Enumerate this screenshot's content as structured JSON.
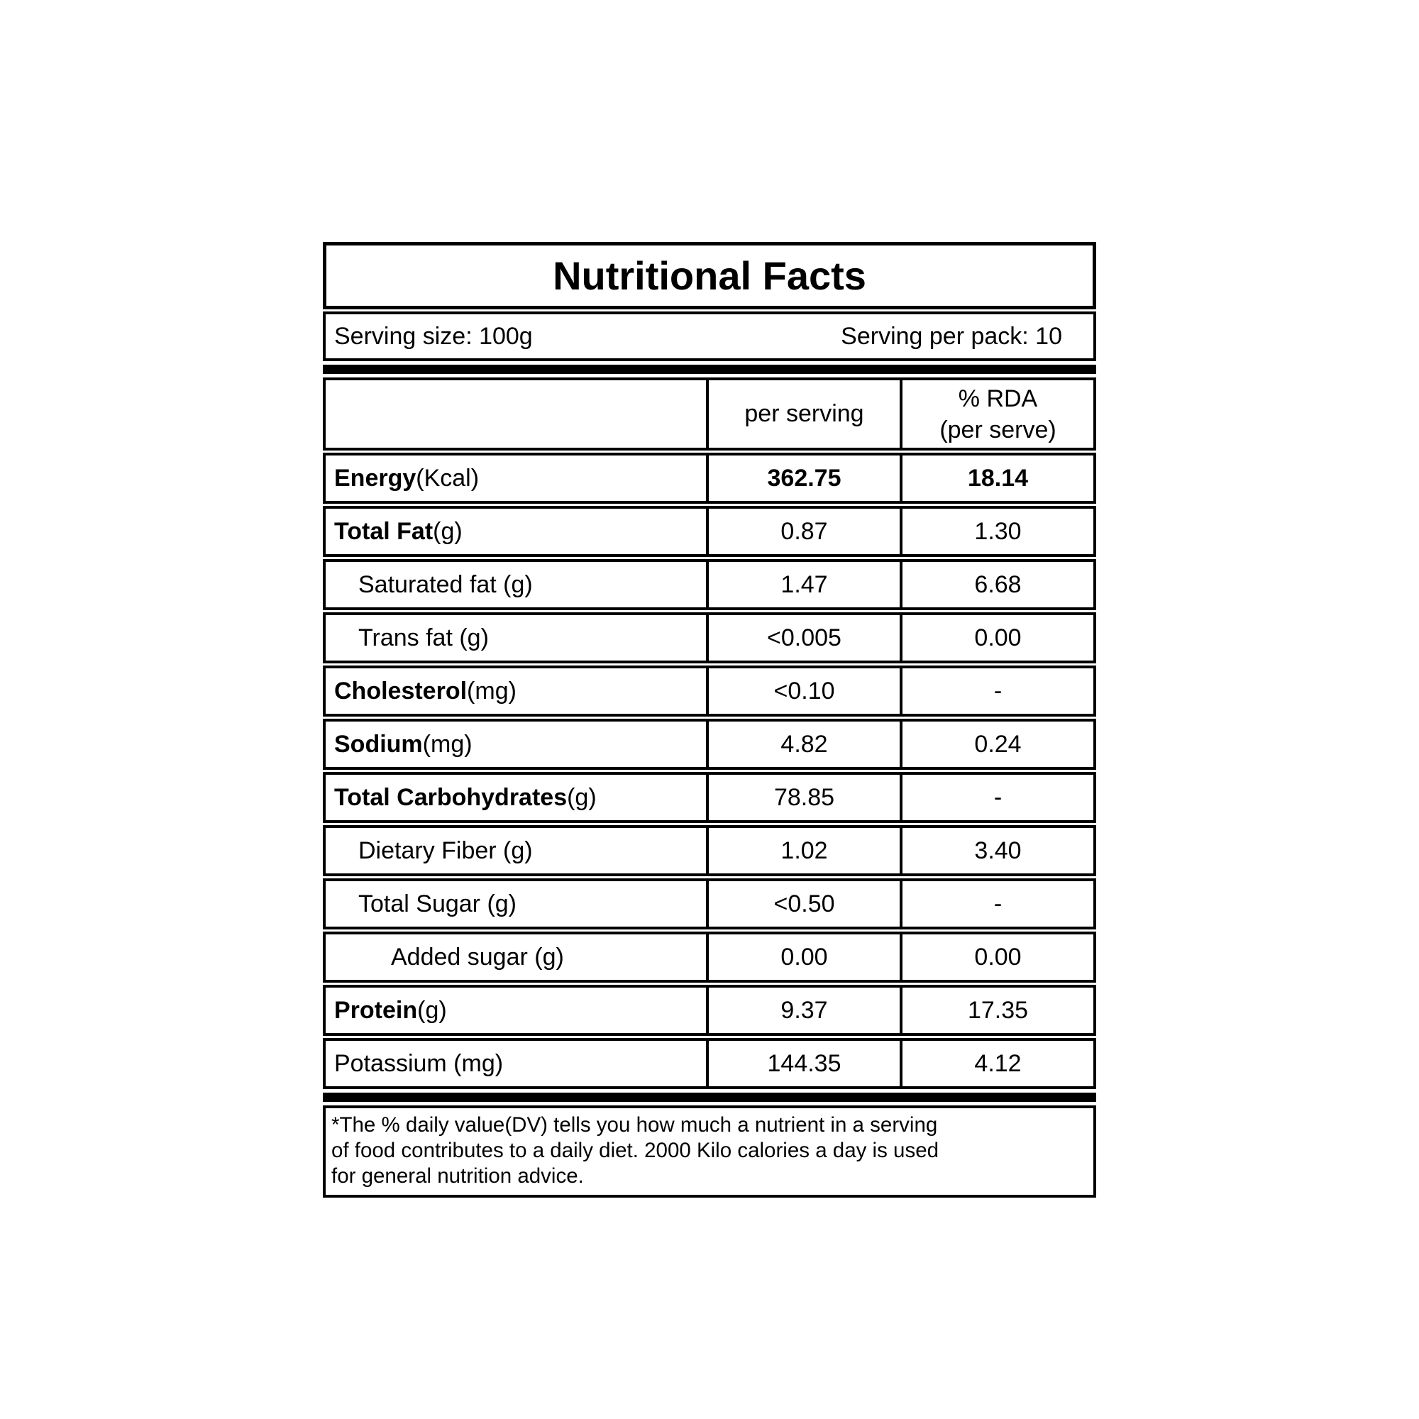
{
  "label": {
    "title": "Nutritional Facts",
    "serving_size": "Serving size: 100g",
    "serving_per_pack": "Serving per pack: 10",
    "columns": {
      "nutrient": "",
      "per_serving": "per serving",
      "rda_line1": "% RDA",
      "rda_line2": "(per serve)"
    },
    "rows": [
      {
        "name_bold": "Energy",
        "name_rest": " (Kcal)",
        "indent": 0,
        "per_serving": "362.75",
        "rda": "18.14",
        "values_bold": true
      },
      {
        "name_bold": "Total Fat",
        "name_rest": " (g)",
        "indent": 0,
        "per_serving": "0.87",
        "rda": "1.30",
        "values_bold": false
      },
      {
        "name_bold": "",
        "name_rest": "Saturated fat (g)",
        "indent": 1,
        "per_serving": "1.47",
        "rda": "6.68",
        "values_bold": false
      },
      {
        "name_bold": "",
        "name_rest": "Trans fat (g)",
        "indent": 1,
        "per_serving": "<0.005",
        "rda": "0.00",
        "values_bold": false
      },
      {
        "name_bold": "Cholesterol",
        "name_rest": " (mg)",
        "indent": 0,
        "per_serving": "<0.10",
        "rda": "-",
        "values_bold": false
      },
      {
        "name_bold": "Sodium",
        "name_rest": " (mg)",
        "indent": 0,
        "per_serving": "4.82",
        "rda": "0.24",
        "values_bold": false
      },
      {
        "name_bold": "Total Carbohydrates",
        "name_rest": " (g)",
        "indent": 0,
        "per_serving": "78.85",
        "rda": "-",
        "values_bold": false
      },
      {
        "name_bold": "",
        "name_rest": "Dietary Fiber (g)",
        "indent": 1,
        "per_serving": "1.02",
        "rda": "3.40",
        "values_bold": false
      },
      {
        "name_bold": "",
        "name_rest": "Total Sugar (g)",
        "indent": 1,
        "per_serving": "<0.50",
        "rda": "-",
        "values_bold": false
      },
      {
        "name_bold": "",
        "name_rest": "Added sugar (g)",
        "indent": 2,
        "per_serving": "0.00",
        "rda": "0.00",
        "values_bold": false
      },
      {
        "name_bold": "Protein",
        "name_rest": " (g)",
        "indent": 0,
        "per_serving": "9.37",
        "rda": "17.35",
        "values_bold": false
      },
      {
        "name_bold": "",
        "name_rest": "Potassium (mg)",
        "indent": 0,
        "per_serving": "144.35",
        "rda": "4.12",
        "values_bold": false
      }
    ],
    "footnote_lines": [
      "*The % daily value(DV) tells you how much a nutrient in a serving",
      "of food contributes to a daily diet. 2000 Kilo calories a day is used",
      "for general nutrition advice."
    ],
    "colors": {
      "border": "#000000",
      "text": "#000000",
      "background": "#ffffff"
    }
  }
}
